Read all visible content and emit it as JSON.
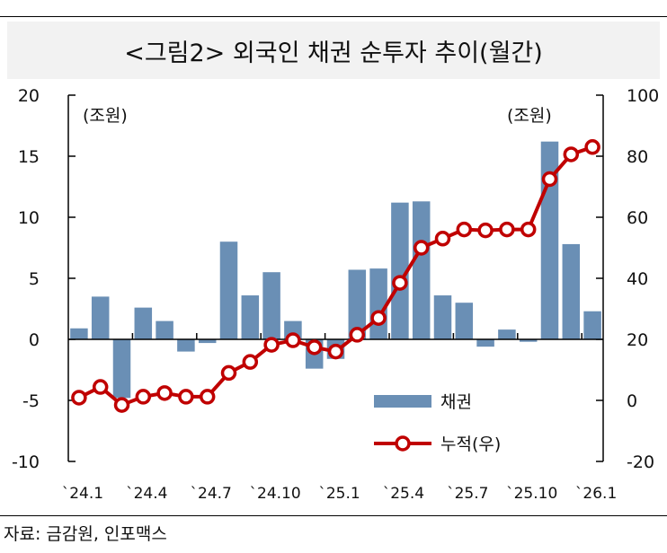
{
  "title": "<그림2> 외국인 채권 순투자 추이(월간)",
  "source": "자료: 금감원, 인포맥스",
  "chart_data": {
    "type": "bar+line",
    "categories": [
      "`24.1",
      "`24.2",
      "`24.3",
      "`24.4",
      "`24.5",
      "`24.6",
      "`24.7",
      "`24.8",
      "`24.9",
      "`24.10",
      "`24.11",
      "`24.12",
      "`25.1",
      "`25.2",
      "`25.3",
      "`25.4",
      "`25.5",
      "`25.6",
      "`25.7",
      "`25.8",
      "`25.9",
      "`25.10",
      "`25.11",
      "`25.12",
      "`26.1"
    ],
    "tick_labels": [
      "`24.1",
      "`24.4",
      "`24.7",
      "`24.10",
      "`25.1",
      "`25.4",
      "`25.7",
      "`25.10",
      "`26.1"
    ],
    "series": [
      {
        "name": "채권",
        "type": "bar",
        "axis": "left",
        "color": "#6a8fb5",
        "values": [
          0.9,
          3.5,
          -4.8,
          2.6,
          1.5,
          -1.0,
          -0.3,
          8.0,
          3.6,
          5.5,
          1.5,
          -2.4,
          -1.6,
          5.7,
          5.8,
          11.2,
          11.3,
          3.6,
          3.0,
          -0.6,
          0.8,
          -0.2,
          16.2,
          7.8,
          2.3
        ]
      },
      {
        "name": "누적(우)",
        "type": "line",
        "axis": "right",
        "color": "#c00000",
        "values": [
          0.9,
          4.4,
          -1.5,
          1.2,
          2.4,
          1.2,
          1.2,
          9.0,
          12.6,
          18.2,
          19.7,
          17.4,
          16.0,
          21.5,
          27.0,
          38.5,
          50.0,
          53.0,
          56.0,
          55.7,
          56.0,
          56.0,
          72.5,
          80.6,
          83.0
        ]
      }
    ],
    "left_axis": {
      "label": "(조원)",
      "ylim": [
        -10,
        20
      ],
      "ticks": [
        "20",
        "15",
        "10",
        "5",
        "0",
        "-5",
        "-10"
      ]
    },
    "right_axis": {
      "label": "(조원)",
      "ylim": [
        -20,
        100
      ],
      "ticks": [
        "100",
        "80",
        "60",
        "40",
        "20",
        "0",
        "-20"
      ]
    },
    "legend": {
      "placement": "bottom-right",
      "entries": [
        "채권",
        "누적(우)"
      ]
    }
  }
}
